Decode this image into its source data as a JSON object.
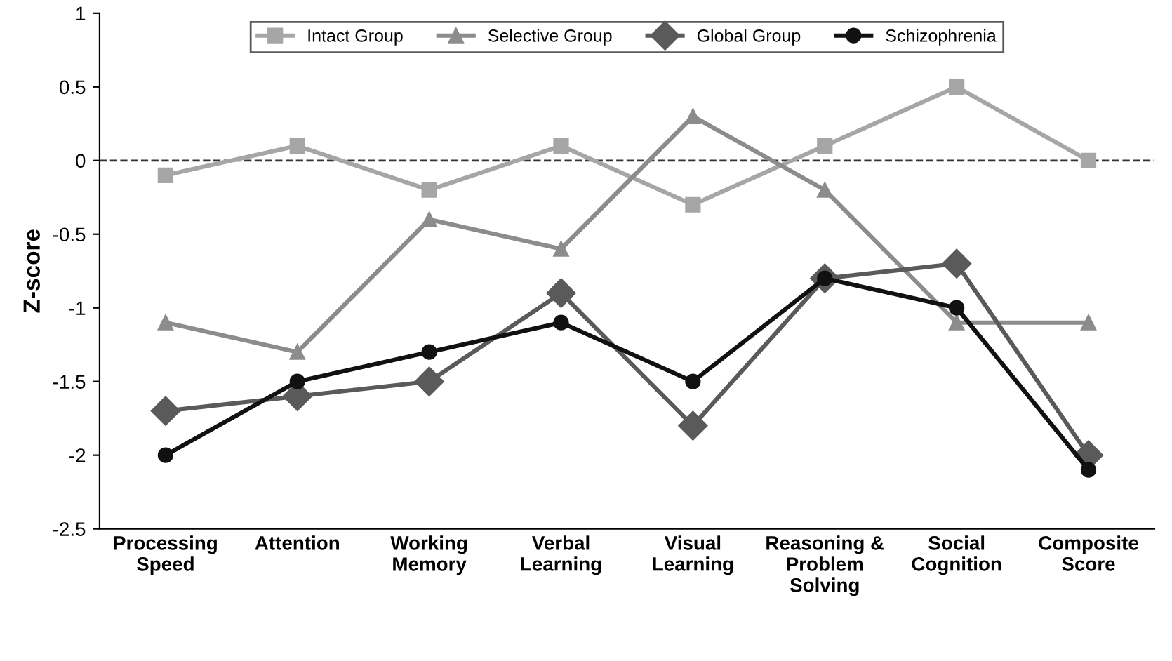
{
  "chart_data": {
    "type": "line",
    "ylabel": "Z-score",
    "categories": [
      "Processing\nSpeed",
      "Attention",
      "Working\nMemory",
      "Verbal\nLearning",
      "Visual\nLearning",
      "Reasoning &\nProblem\nSolving",
      "Social\nCognition",
      "Composite\nScore"
    ],
    "series": [
      {
        "name": "Intact Group",
        "color": "#a6a6a6",
        "marker": "square",
        "values": [
          -0.1,
          0.1,
          -0.2,
          0.1,
          -0.3,
          0.1,
          0.5,
          0
        ]
      },
      {
        "name": "Selective Group",
        "color": "#8c8c8c",
        "marker": "triangle",
        "values": [
          -1.1,
          -1.3,
          -0.4,
          -0.6,
          0.3,
          -0.2,
          -1.1,
          -1.1
        ]
      },
      {
        "name": "Global Group",
        "color": "#5a5a5a",
        "marker": "diamond",
        "values": [
          -1.7,
          -1.6,
          -1.5,
          -0.9,
          -1.8,
          -0.8,
          -0.7,
          -2.0
        ]
      },
      {
        "name": "Schizophrenia",
        "color": "#111111",
        "marker": "circle",
        "values": [
          -2.0,
          -1.5,
          -1.3,
          -1.1,
          -1.5,
          -0.8,
          -1.0,
          -2.1
        ]
      }
    ],
    "ylim": [
      -2.5,
      1
    ],
    "yticks": [
      -2.5,
      -2,
      -1.5,
      -1,
      -0.5,
      0,
      0.5,
      1
    ],
    "ref_lines": [
      {
        "axis": "y",
        "value": 0,
        "color": "#333333",
        "line_style": "dashed"
      }
    ],
    "grid": false,
    "legend": "top",
    "line_style": "solid"
  }
}
